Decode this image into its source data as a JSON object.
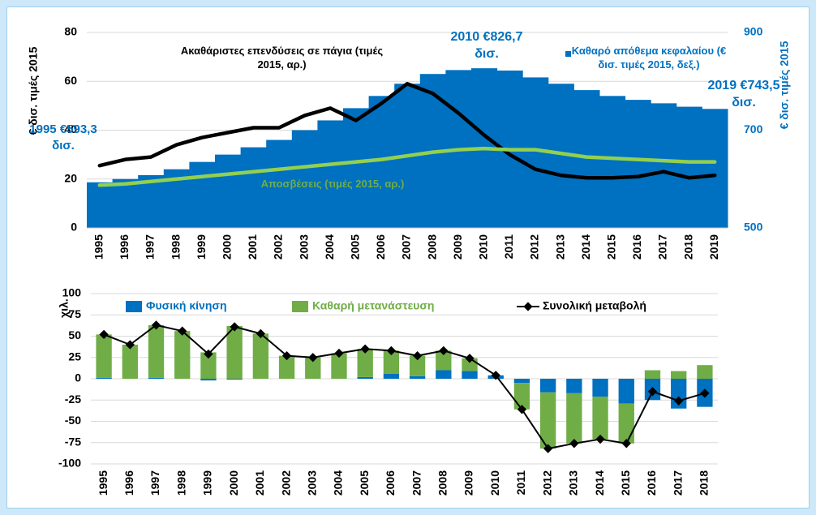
{
  "chart_data": [
    {
      "type": "combo",
      "categories": [
        "1995",
        "1996",
        "1997",
        "1998",
        "1999",
        "2000",
        "2001",
        "2002",
        "2003",
        "2004",
        "2005",
        "2006",
        "2007",
        "2008",
        "2009",
        "2010",
        "2011",
        "2012",
        "2013",
        "2014",
        "2015",
        "2016",
        "2017",
        "2018",
        "2019"
      ],
      "ylim": [
        0,
        80
      ],
      "yticks": [
        0,
        20,
        40,
        60,
        80
      ],
      "y2lim": [
        500,
        900
      ],
      "y2ticks": [
        500,
        700,
        900
      ],
      "ylabel": "€ δισ. τιμές 2015",
      "y2label": "€ δισ. τιμές 2015",
      "grid": true,
      "series": [
        {
          "name": "Καθαρό απόθεμα κεφαλαίου (€ δισ. τιμές 2015, δεξ.)",
          "type": "bar",
          "axis": "y2",
          "color": "#0070c0",
          "values": [
            593.3,
            600,
            608,
            620,
            635,
            650,
            665,
            680,
            700,
            720,
            745,
            770,
            795,
            815,
            823,
            826.7,
            822,
            808,
            795,
            782,
            770,
            762,
            755,
            748,
            743.5
          ]
        },
        {
          "name": "Ακαθάριστες επενδύσεις σε πάγια (τιμές 2015, αρ.)",
          "type": "line",
          "color": "#000000",
          "values": [
            25.5,
            28,
            29,
            34,
            37,
            39,
            41,
            41,
            46,
            49,
            44,
            51,
            59,
            55,
            47,
            38,
            30,
            24,
            21.5,
            20.5,
            20.5,
            21,
            23,
            20.5,
            21.5
          ]
        },
        {
          "name": "Αποσβέσεις (τιμές 2015, αρ.)",
          "type": "line",
          "color": "#92d050",
          "values": [
            17.5,
            18,
            19,
            20,
            21,
            22,
            23,
            24,
            25,
            26,
            27,
            28,
            29.5,
            31,
            32,
            32.5,
            32,
            32,
            30.5,
            29,
            28.5,
            28,
            27.5,
            27,
            27
          ]
        }
      ],
      "annotations": [
        "1995 €593,3 δισ.",
        "2010 €826,7 δισ.",
        "2019 €743,5 δισ."
      ]
    },
    {
      "type": "bar",
      "stacked": true,
      "categories": [
        "1995",
        "1996",
        "1997",
        "1998",
        "1999",
        "2000",
        "2001",
        "2002",
        "2003",
        "2004",
        "2005",
        "2006",
        "2007",
        "2008",
        "2009",
        "2010",
        "2011",
        "2012",
        "2013",
        "2014",
        "2015",
        "2016",
        "2017",
        "2018"
      ],
      "ylim": [
        -100,
        100
      ],
      "yticks": [
        -100,
        -75,
        -50,
        -25,
        0,
        25,
        50,
        75,
        100
      ],
      "ylabel": "χιλ.",
      "grid": true,
      "series": [
        {
          "name": "Φυσική κίνηση",
          "type": "bar",
          "color": "#0070c0",
          "values": [
            1,
            0,
            1,
            0,
            -2,
            -1,
            0,
            0,
            0,
            0,
            2,
            6,
            3,
            10,
            9,
            4,
            -5,
            -16,
            -17,
            -21,
            -29,
            -25,
            -35,
            -33
          ]
        },
        {
          "name": "Καθαρή μετανάστευση",
          "type": "bar",
          "color": "#70ad47",
          "values": [
            51,
            40,
            62,
            56,
            31,
            62,
            53,
            27,
            25,
            30,
            33,
            27,
            24,
            23,
            15,
            0,
            -31,
            -66,
            -59,
            -50,
            -47,
            10,
            9,
            16
          ]
        },
        {
          "name": "Συνολική μεταβολή",
          "type": "line",
          "marker": "diamond",
          "color": "#000000",
          "values": [
            52,
            40,
            63,
            56,
            29,
            61,
            53,
            27,
            25,
            30,
            35,
            33,
            27,
            33,
            24,
            4,
            -36,
            -82,
            -76,
            -71,
            -76,
            -15,
            -26,
            -17
          ]
        }
      ]
    }
  ]
}
